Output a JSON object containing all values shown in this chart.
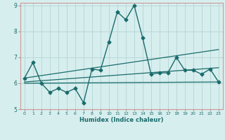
{
  "xlabel": "Humidex (Indice chaleur)",
  "xlim": [
    -0.5,
    23.5
  ],
  "ylim": [
    5,
    9.1
  ],
  "yticks": [
    5,
    6,
    7,
    8,
    9
  ],
  "xticks": [
    0,
    1,
    2,
    3,
    4,
    5,
    6,
    7,
    8,
    9,
    10,
    11,
    12,
    13,
    14,
    15,
    16,
    17,
    18,
    19,
    20,
    21,
    22,
    23
  ],
  "background_color": "#d7eeee",
  "grid_color": "#b8d8d8",
  "line_color": "#1a6b6b",
  "lines": [
    {
      "x": [
        0,
        1,
        2,
        3,
        4,
        5,
        6,
        7,
        8,
        9,
        10,
        11,
        12,
        13,
        14,
        15,
        16,
        17,
        18,
        19,
        20,
        21,
        22,
        23
      ],
      "y": [
        6.2,
        6.8,
        6.0,
        5.65,
        5.8,
        5.65,
        5.8,
        5.25,
        6.55,
        6.5,
        7.6,
        8.75,
        8.45,
        9.0,
        7.75,
        6.35,
        6.4,
        6.4,
        7.0,
        6.5,
        6.5,
        6.35,
        6.55,
        6.05
      ],
      "marker": "D",
      "markersize": 2.5,
      "linewidth": 1.0
    },
    {
      "x": [
        0,
        23
      ],
      "y": [
        6.0,
        6.05
      ],
      "marker": null,
      "markersize": 0,
      "linewidth": 0.9
    },
    {
      "x": [
        0,
        23
      ],
      "y": [
        6.05,
        6.6
      ],
      "marker": null,
      "markersize": 0,
      "linewidth": 0.9
    },
    {
      "x": [
        0,
        23
      ],
      "y": [
        6.2,
        7.3
      ],
      "marker": null,
      "markersize": 0,
      "linewidth": 0.9
    }
  ]
}
